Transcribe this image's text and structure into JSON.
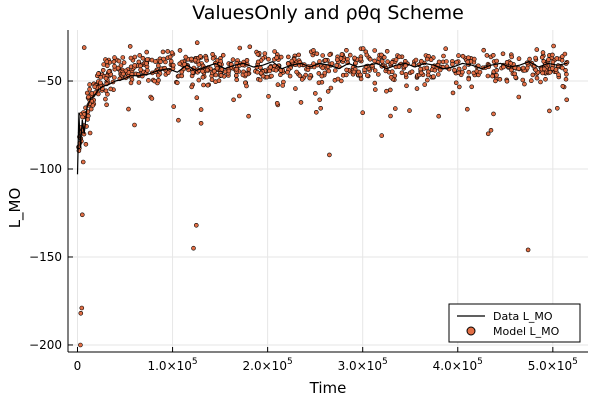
{
  "chart_data": {
    "type": "scatter",
    "title": "ValuesOnly and ρθq Scheme",
    "xlabel": "Time",
    "ylabel": "L_MO",
    "xlim": [
      -10000,
      537000
    ],
    "ylim": [
      -204,
      -21
    ],
    "grid": true,
    "legend_position": "bottom-right",
    "x_ticks": [
      {
        "value": 0,
        "mant": "0",
        "exp": ""
      },
      {
        "value": 100000,
        "mant": "1.0×10",
        "exp": "5"
      },
      {
        "value": 200000,
        "mant": "2.0×10",
        "exp": "5"
      },
      {
        "value": 300000,
        "mant": "3.0×10",
        "exp": "5"
      },
      {
        "value": 400000,
        "mant": "4.0×10",
        "exp": "5"
      },
      {
        "value": 500000,
        "mant": "5.0×10",
        "exp": "5"
      }
    ],
    "y_ticks": [
      {
        "value": -50,
        "label": "−50"
      },
      {
        "value": -100,
        "label": "−100"
      },
      {
        "value": -150,
        "label": "−150"
      },
      {
        "value": -200,
        "label": "−200"
      }
    ],
    "series": [
      {
        "name": "Data L_MO",
        "kind": "line",
        "color": "#000000",
        "x": [
          0,
          1500,
          3000,
          5000,
          7000,
          10000,
          14000,
          18000,
          22000,
          27000,
          33000,
          40000,
          48000,
          56000,
          65000,
          75000,
          85000,
          95000,
          105000,
          115000,
          125000,
          135000,
          145000,
          155000,
          165000,
          175000,
          185000,
          195000,
          205000,
          215000,
          225000,
          235000,
          245000,
          255000,
          265000,
          275000,
          285000,
          295000,
          305000,
          315000,
          325000,
          335000,
          345000,
          355000,
          365000,
          375000,
          385000,
          395000,
          405000,
          415000,
          425000,
          435000,
          445000,
          455000,
          465000,
          475000,
          485000,
          495000,
          505000,
          515000
        ],
        "y": [
          -103,
          -68,
          -88,
          -72,
          -80,
          -65,
          -60,
          -58,
          -55,
          -53,
          -52,
          -50,
          -49,
          -47,
          -47,
          -46,
          -44,
          -43,
          -45,
          -41,
          -44,
          -42,
          -40,
          -43,
          -41,
          -40,
          -42,
          -41,
          -39,
          -43,
          -41,
          -40,
          -42,
          -40,
          -41,
          -43,
          -40,
          -42,
          -41,
          -40,
          -43,
          -41,
          -40,
          -42,
          -40,
          -41,
          -43,
          -42,
          -40,
          -41,
          -43,
          -41,
          -40,
          -42,
          -41,
          -39,
          -42,
          -40,
          -41,
          -40
        ]
      },
      {
        "name": "Model L_MO",
        "kind": "scatter",
        "color": "#E26F46",
        "points": "generated"
      }
    ]
  }
}
